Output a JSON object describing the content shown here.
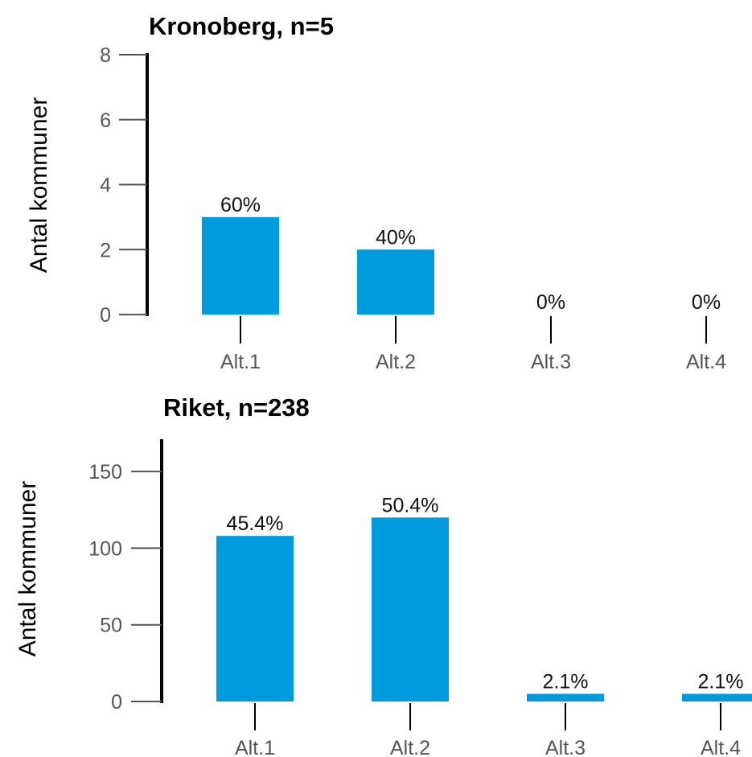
{
  "colors": {
    "bar": "#009ADE",
    "axis": "#000000",
    "tick": "#555555"
  },
  "chart_data": [
    {
      "type": "bar",
      "title": "Kronoberg, n=5",
      "ylabel": "Antal kommuner",
      "xlabel": "",
      "categories": [
        "Alt.1",
        "Alt.2",
        "Alt.3",
        "Alt.4"
      ],
      "values": [
        3,
        2,
        0,
        0
      ],
      "data_labels": [
        "60%",
        "40%",
        "0%",
        "0%"
      ],
      "ylim": [
        0,
        8
      ],
      "yticks": [
        0,
        2,
        4,
        6,
        8
      ],
      "ytick_labels": [
        "0",
        "2",
        "4",
        "6",
        "8"
      ],
      "grid": false,
      "legend": "none"
    },
    {
      "type": "bar",
      "title": "Riket, n=238",
      "ylabel": "Antal kommuner",
      "xlabel": "",
      "categories": [
        "Alt.1",
        "Alt.2",
        "Alt.3",
        "Alt.4"
      ],
      "values": [
        108,
        120,
        5,
        5
      ],
      "data_labels": [
        "45.4%",
        "50.4%",
        "2.1%",
        "2.1%"
      ],
      "ylim": [
        0,
        170
      ],
      "yticks": [
        0,
        50,
        100,
        150
      ],
      "ytick_labels": [
        "0",
        "50",
        "100",
        "150"
      ],
      "grid": false,
      "legend": "none"
    }
  ]
}
